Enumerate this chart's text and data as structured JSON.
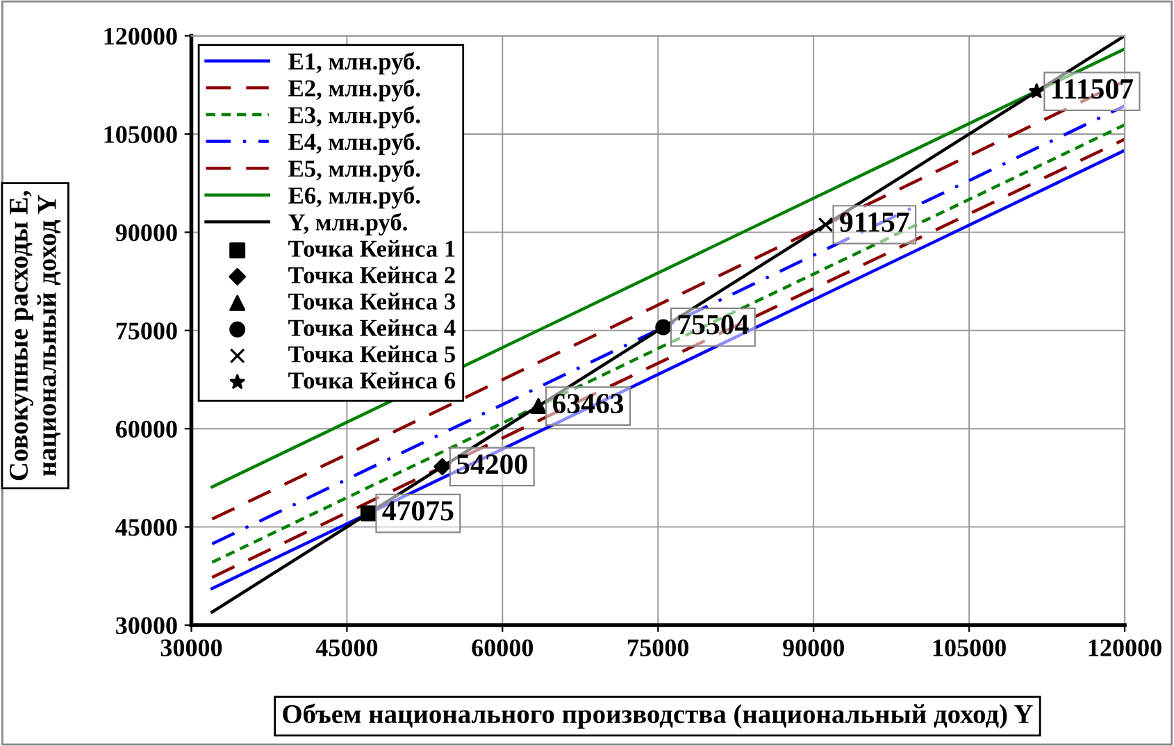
{
  "chart_data": {
    "type": "line",
    "xlabel": "Объем национального производства (национальный доход) Y",
    "ylabel": "Совокупные расходы E,\nнациональный доход Y",
    "xlim": [
      30000,
      120000
    ],
    "xticks": [
      30000,
      45000,
      60000,
      75000,
      90000,
      105000,
      120000
    ],
    "ylim": [
      30000,
      120000
    ],
    "yticks": [
      30000,
      45000,
      60000,
      75000,
      90000,
      105000,
      120000
    ],
    "grid": true,
    "legend": "top left",
    "series": [
      {
        "name": "E1, млн.руб.",
        "color": "#0000ff",
        "line_style": "solid",
        "x": [
          32000,
          120000
        ],
        "values": [
          35600,
          102500
        ]
      },
      {
        "name": "E2, млн.руб.",
        "color": "#8b0000",
        "line_style": "dashed",
        "x": [
          32000,
          120000
        ],
        "values": [
          37300,
          104200
        ]
      },
      {
        "name": "E3, млн.руб.",
        "color": "#008000",
        "line_style": "dotted",
        "x": [
          32000,
          120000
        ],
        "values": [
          39600,
          106400
        ]
      },
      {
        "name": "E4, млн.руб.",
        "color": "#0000ff",
        "line_style": "dashdot",
        "x": [
          32000,
          120000
        ],
        "values": [
          42400,
          109300
        ]
      },
      {
        "name": "E5, млн.руб.",
        "color": "#8b0000",
        "line_style": "dashed",
        "x": [
          32000,
          120000
        ],
        "values": [
          46200,
          113100
        ]
      },
      {
        "name": "E6, млн.руб.",
        "color": "#008000",
        "line_style": "solid",
        "x": [
          32000,
          120000
        ],
        "values": [
          51100,
          118000
        ]
      },
      {
        "name": "Y, млн.руб.",
        "color": "#000000",
        "line_style": "solid",
        "x": [
          32000,
          120000
        ],
        "values": [
          32000,
          120000
        ]
      },
      {
        "name": "Точка Кейнса 1",
        "type": "scatter",
        "marker": "square",
        "color": "#000000",
        "data_labels": true,
        "x": [
          47075
        ],
        "values": [
          47075
        ]
      },
      {
        "name": "Точка Кейнса 2",
        "type": "scatter",
        "marker": "diamond",
        "color": "#000000",
        "data_labels": true,
        "x": [
          54200
        ],
        "values": [
          54200
        ]
      },
      {
        "name": "Точка Кейнса 3",
        "type": "scatter",
        "marker": "triangle",
        "color": "#000000",
        "data_labels": true,
        "x": [
          63463
        ],
        "values": [
          63463
        ]
      },
      {
        "name": "Точка Кейнса 4",
        "type": "scatter",
        "marker": "circle",
        "color": "#000000",
        "data_labels": true,
        "x": [
          75504
        ],
        "values": [
          75504
        ]
      },
      {
        "name": "Точка Кейнса 5",
        "type": "scatter",
        "marker": "cross",
        "color": "#000000",
        "data_labels": true,
        "x": [
          91157
        ],
        "values": [
          91157
        ]
      },
      {
        "name": "Точка Кейнса 6",
        "type": "scatter",
        "marker": "star",
        "color": "#000000",
        "data_labels": true,
        "x": [
          111507
        ],
        "values": [
          111507
        ]
      }
    ]
  }
}
